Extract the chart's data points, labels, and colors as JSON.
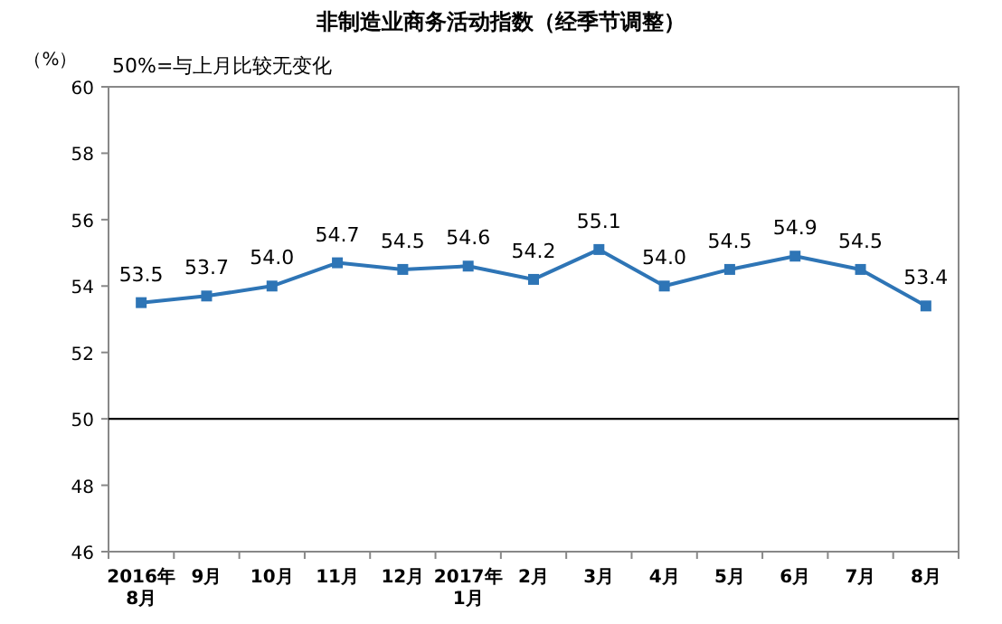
{
  "chart_data": {
    "type": "line",
    "title": "非制造业商务活动指数（经季节调整）",
    "ylabel": "（%）",
    "annotations": [
      "50%=与上月比较无变化"
    ],
    "categories": [
      "2016年\n8月",
      "9月",
      "10月",
      "11月",
      "12月",
      "2017年\n1月",
      "2月",
      "3月",
      "4月",
      "5月",
      "6月",
      "7月",
      "8月"
    ],
    "values": [
      53.5,
      53.7,
      54.0,
      54.7,
      54.5,
      54.6,
      54.2,
      55.1,
      54.0,
      54.5,
      54.9,
      54.5,
      53.4
    ],
    "value_labels": [
      "53.5",
      "53.7",
      "54.0",
      "54.7",
      "54.5",
      "54.6",
      "54.2",
      "55.1",
      "54.0",
      "54.5",
      "54.9",
      "54.5",
      "53.4"
    ],
    "color": "#2e75b6",
    "marker": "square",
    "line_style": "solid",
    "ylim": [
      46,
      60
    ],
    "yticks": [
      46,
      48,
      50,
      52,
      54,
      56,
      58,
      60
    ],
    "ref_lines": [
      {
        "axis": "y",
        "value": 50,
        "color": "#000000"
      }
    ]
  }
}
